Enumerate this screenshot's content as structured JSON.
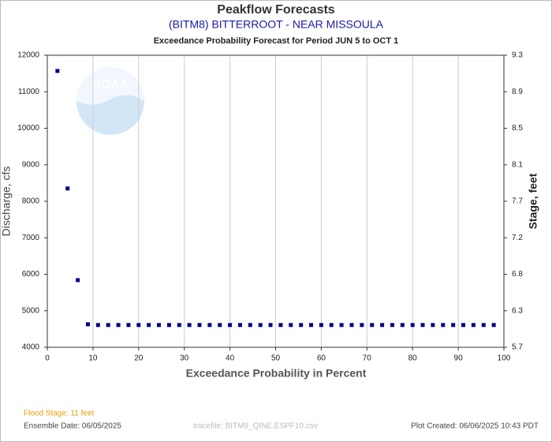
{
  "chart_data": {
    "type": "scatter",
    "title": "Peakflow Forecasts",
    "subtitle": "(BITM8) BITTERROOT - NEAR MISSOULA",
    "description": "Exceedance Probability Forecast for Period JUN 5 to OCT 1",
    "xlabel": "Exceedance Probability in Percent",
    "ylabel": "Discharge, cfs",
    "y2label": "Stage, feet",
    "logo_text": "NOAA",
    "color": "#00008b",
    "grid": "x",
    "xlim": [
      0,
      100
    ],
    "xticks": [
      0,
      10,
      20,
      30,
      40,
      50,
      60,
      70,
      80,
      90,
      100
    ],
    "ylim": [
      4000,
      12000
    ],
    "yticks": [
      4000,
      5000,
      6000,
      7000,
      8000,
      9000,
      10000,
      11000,
      12000
    ],
    "y2lim": [
      5.7,
      9.3
    ],
    "y2ticks": [
      5.7,
      6.3,
      6.8,
      7.2,
      7.7,
      8.1,
      8.5,
      8.9,
      9.3
    ],
    "x": [
      2.22,
      4.44,
      6.67,
      8.89,
      11.11,
      13.33,
      15.56,
      17.78,
      20,
      22.22,
      24.44,
      26.67,
      28.89,
      31.11,
      33.33,
      35.56,
      37.78,
      40,
      42.22,
      44.44,
      46.67,
      48.89,
      51.11,
      53.33,
      55.56,
      57.78,
      60,
      62.22,
      64.44,
      66.67,
      68.89,
      71.11,
      73.33,
      75.56,
      77.78,
      80,
      82.22,
      84.44,
      86.67,
      88.89,
      91.11,
      93.33,
      95.56,
      97.78
    ],
    "values": [
      11570,
      8350,
      5840,
      4630,
      4610,
      4610,
      4610,
      4610,
      4610,
      4610,
      4610,
      4610,
      4610,
      4610,
      4610,
      4610,
      4610,
      4610,
      4610,
      4610,
      4610,
      4610,
      4610,
      4610,
      4610,
      4610,
      4610,
      4610,
      4610,
      4610,
      4610,
      4610,
      4610,
      4610,
      4610,
      4610,
      4610,
      4610,
      4610,
      4610,
      4610,
      4610,
      4610,
      4610
    ]
  },
  "footer": {
    "flood_stage": "Flood Stage: 11 feet",
    "ensemble_date": "Ensemble Date: 06/05/2025",
    "tracefile": "tracefile: BITM8_QINE.ESPF10.csv",
    "plot_created": "Plot Created: 06/06/2025 10:43 PDT"
  }
}
